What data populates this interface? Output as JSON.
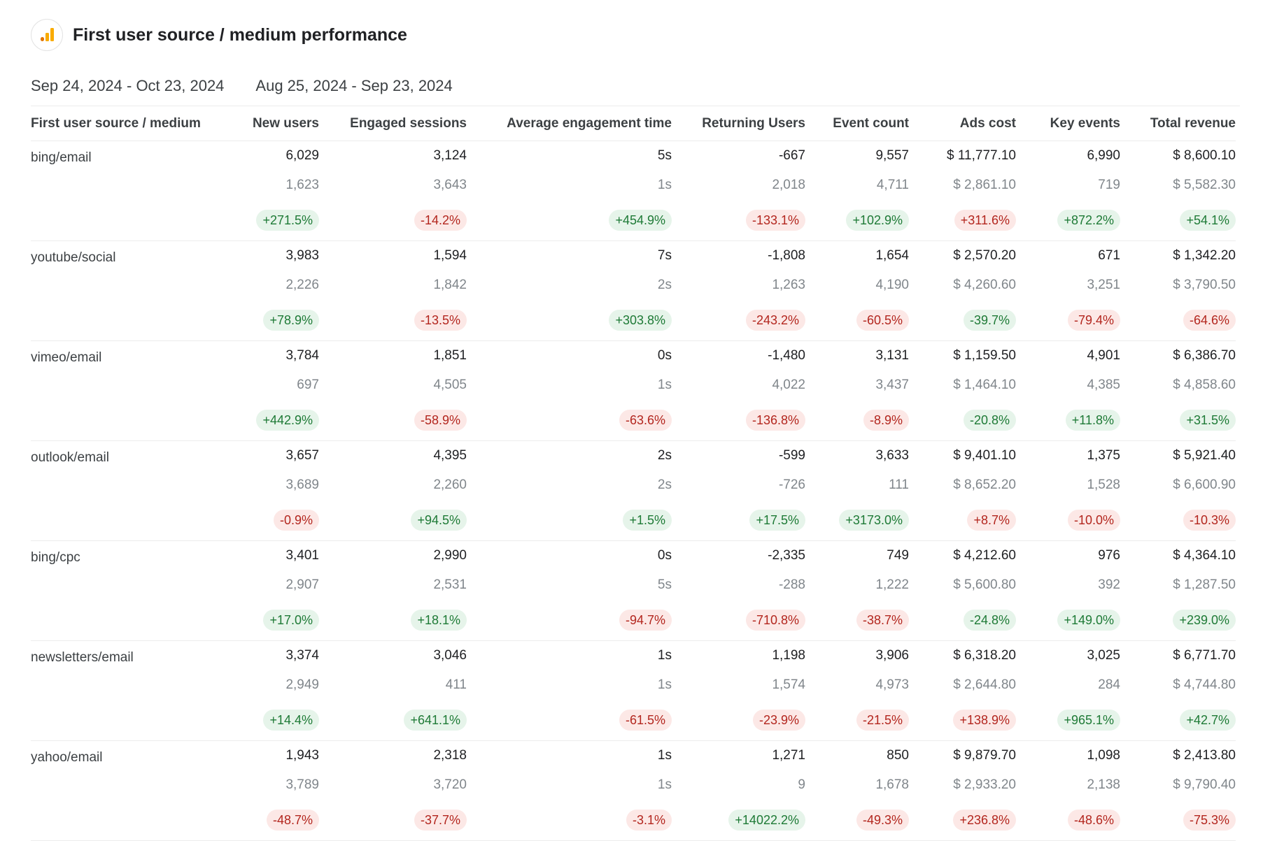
{
  "title": "First user source / medium performance",
  "logo_icon": "analytics-bar-chart-icon",
  "date_ranges": {
    "current": "Sep 24, 2024 - Oct 23, 2024",
    "previous": "Aug 25, 2024 - Sep 23, 2024"
  },
  "columns": [
    "First user source / medium",
    "New users",
    "Engaged sessions",
    "Average engagement time",
    "Returning Users",
    "Event count",
    "Ads cost",
    "Key events",
    "Total revenue"
  ],
  "rows": [
    {
      "name": "bing/email",
      "current": [
        "6,029",
        "3,124",
        "5s",
        "-667",
        "9,557",
        "$ 11,777.10",
        "6,990",
        "$ 8,600.10"
      ],
      "previous": [
        "1,623",
        "3,643",
        "1s",
        "2,018",
        "4,711",
        "$ 2,861.10",
        "719",
        "$ 5,582.30"
      ],
      "change": [
        "+271.5%",
        "-14.2%",
        "+454.9%",
        "-133.1%",
        "+102.9%",
        "+311.6%",
        "+872.2%",
        "+54.1%"
      ],
      "change_tone": [
        "pos",
        "neg",
        "pos",
        "neg",
        "pos",
        "neg",
        "pos",
        "pos"
      ]
    },
    {
      "name": "youtube/social",
      "current": [
        "3,983",
        "1,594",
        "7s",
        "-1,808",
        "1,654",
        "$ 2,570.20",
        "671",
        "$ 1,342.20"
      ],
      "previous": [
        "2,226",
        "1,842",
        "2s",
        "1,263",
        "4,190",
        "$ 4,260.60",
        "3,251",
        "$ 3,790.50"
      ],
      "change": [
        "+78.9%",
        "-13.5%",
        "+303.8%",
        "-243.2%",
        "-60.5%",
        "-39.7%",
        "-79.4%",
        "-64.6%"
      ],
      "change_tone": [
        "pos",
        "neg",
        "pos",
        "neg",
        "neg",
        "pos",
        "neg",
        "neg"
      ]
    },
    {
      "name": "vimeo/email",
      "current": [
        "3,784",
        "1,851",
        "0s",
        "-1,480",
        "3,131",
        "$ 1,159.50",
        "4,901",
        "$ 6,386.70"
      ],
      "previous": [
        "697",
        "4,505",
        "1s",
        "4,022",
        "3,437",
        "$ 1,464.10",
        "4,385",
        "$ 4,858.60"
      ],
      "change": [
        "+442.9%",
        "-58.9%",
        "-63.6%",
        "-136.8%",
        "-8.9%",
        "-20.8%",
        "+11.8%",
        "+31.5%"
      ],
      "change_tone": [
        "pos",
        "neg",
        "neg",
        "neg",
        "neg",
        "pos",
        "pos",
        "pos"
      ]
    },
    {
      "name": "outlook/email",
      "current": [
        "3,657",
        "4,395",
        "2s",
        "-599",
        "3,633",
        "$ 9,401.10",
        "1,375",
        "$ 5,921.40"
      ],
      "previous": [
        "3,689",
        "2,260",
        "2s",
        "-726",
        "111",
        "$ 8,652.20",
        "1,528",
        "$ 6,600.90"
      ],
      "change": [
        "-0.9%",
        "+94.5%",
        "+1.5%",
        "+17.5%",
        "+3173.0%",
        "+8.7%",
        "-10.0%",
        "-10.3%"
      ],
      "change_tone": [
        "neg",
        "pos",
        "pos",
        "pos",
        "pos",
        "neg",
        "neg",
        "neg"
      ]
    },
    {
      "name": "bing/cpc",
      "current": [
        "3,401",
        "2,990",
        "0s",
        "-2,335",
        "749",
        "$ 4,212.60",
        "976",
        "$ 4,364.10"
      ],
      "previous": [
        "2,907",
        "2,531",
        "5s",
        "-288",
        "1,222",
        "$ 5,600.80",
        "392",
        "$ 1,287.50"
      ],
      "change": [
        "+17.0%",
        "+18.1%",
        "-94.7%",
        "-710.8%",
        "-38.7%",
        "-24.8%",
        "+149.0%",
        "+239.0%"
      ],
      "change_tone": [
        "pos",
        "pos",
        "neg",
        "neg",
        "neg",
        "pos",
        "pos",
        "pos"
      ]
    },
    {
      "name": "newsletters/email",
      "current": [
        "3,374",
        "3,046",
        "1s",
        "1,198",
        "3,906",
        "$ 6,318.20",
        "3,025",
        "$ 6,771.70"
      ],
      "previous": [
        "2,949",
        "411",
        "1s",
        "1,574",
        "4,973",
        "$ 2,644.80",
        "284",
        "$ 4,744.80"
      ],
      "change": [
        "+14.4%",
        "+641.1%",
        "-61.5%",
        "-23.9%",
        "-21.5%",
        "+138.9%",
        "+965.1%",
        "+42.7%"
      ],
      "change_tone": [
        "pos",
        "pos",
        "neg",
        "neg",
        "neg",
        "neg",
        "pos",
        "pos"
      ]
    },
    {
      "name": "yahoo/email",
      "current": [
        "1,943",
        "2,318",
        "1s",
        "1,271",
        "850",
        "$ 9,879.70",
        "1,098",
        "$ 2,413.80"
      ],
      "previous": [
        "3,789",
        "3,720",
        "1s",
        "9",
        "1,678",
        "$ 2,933.20",
        "2,138",
        "$ 9,790.40"
      ],
      "change": [
        "-48.7%",
        "-37.7%",
        "-3.1%",
        "+14022.2%",
        "-49.3%",
        "+236.8%",
        "-48.6%",
        "-75.3%"
      ],
      "change_tone": [
        "neg",
        "neg",
        "neg",
        "pos",
        "neg",
        "neg",
        "neg",
        "neg"
      ]
    }
  ],
  "colors": {
    "positive_bg": "#e6f4ea",
    "positive_text": "#1e7a36",
    "negative_bg": "#fce8e6",
    "negative_text": "#b3261e",
    "logo_orange": "#f9ab00",
    "logo_dark_orange": "#e37400"
  }
}
